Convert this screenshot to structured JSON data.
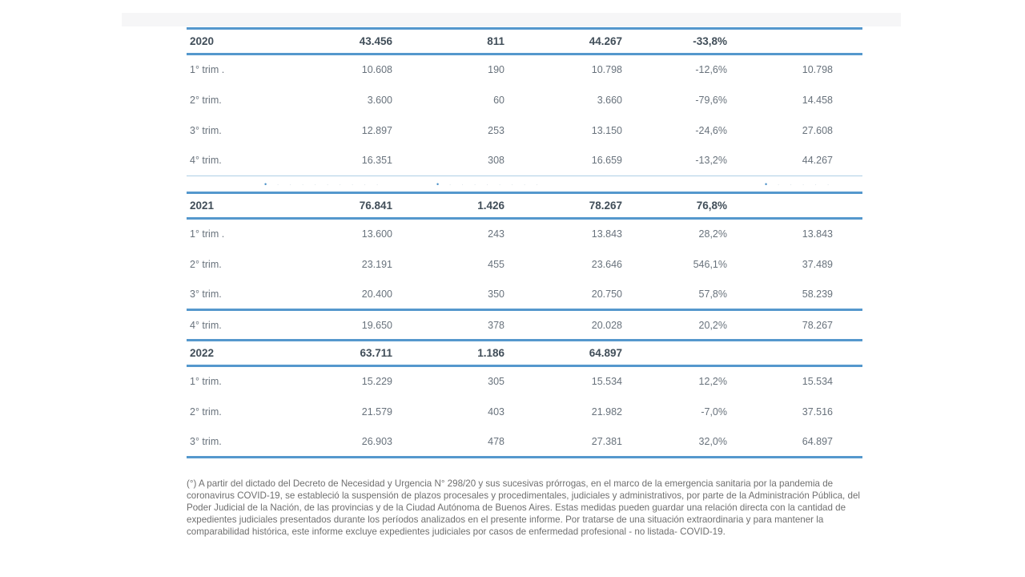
{
  "colors": {
    "table_line_blue": "#5598cd",
    "thin_line_blue": "#aecfe6",
    "year_text": "#414e59",
    "body_text": "#68727c",
    "footnote_text": "#6f6f6f",
    "top_strip": "#f6f6f7"
  },
  "table": {
    "sections": [
      {
        "header": {
          "label": "2020",
          "cells": [
            "43.456",
            "811",
            "44.267",
            "-33,8%",
            ""
          ]
        },
        "rows": [
          {
            "label": "1° trim .",
            "cells": [
              "10.608",
              "190",
              "10.798",
              "-12,6%",
              "10.798"
            ]
          },
          {
            "label": "2° trim.",
            "cells": [
              "3.600",
              "60",
              "3.660",
              "-79,6%",
              "14.458"
            ]
          },
          {
            "label": "3° trim.",
            "cells": [
              "12.897",
              "253",
              "13.150",
              "-24,6%",
              "27.608"
            ]
          },
          {
            "label": "4° trim.",
            "cells": [
              "16.351",
              "308",
              "16.659",
              "-13,2%",
              "44.267"
            ]
          }
        ]
      },
      {
        "header": {
          "label": "2021",
          "cells": [
            "76.841",
            "1.426",
            "78.267",
            "76,8%",
            ""
          ]
        },
        "rows": [
          {
            "label": "1° trim .",
            "cells": [
              "13.600",
              "243",
              "13.843",
              "28,2%",
              "13.843"
            ]
          },
          {
            "label": "2° trim.",
            "cells": [
              "23.191",
              "455",
              "23.646",
              "546,1%",
              "37.489"
            ]
          },
          {
            "label": "3° trim.",
            "cells": [
              "20.400",
              "350",
              "20.750",
              "57,8%",
              "58.239"
            ]
          },
          {
            "label": "4° trim.",
            "cells": [
              "19.650",
              "378",
              "20.028",
              "20,2%",
              "78.267"
            ]
          }
        ]
      },
      {
        "header": {
          "label": "2022",
          "cells": [
            "63.711",
            "1.186",
            "64.897",
            "",
            ""
          ]
        },
        "rows": [
          {
            "label": "1° trim.",
            "cells": [
              "15.229",
              "305",
              "15.534",
              "12,2%",
              "15.534"
            ]
          },
          {
            "label": "2° trim.",
            "cells": [
              "21.579",
              "403",
              "21.982",
              "-7,0%",
              "37.516"
            ]
          },
          {
            "label": "3° trim.",
            "cells": [
              "26.903",
              "478",
              "27.381",
              "32,0%",
              "64.897"
            ]
          }
        ]
      }
    ],
    "ghost_row": {
      "fragments": [
        {
          "dot": "•",
          "dashes": "· · · · · · · · ·"
        },
        {
          "dot": "•",
          "dashes": "· · · · · · · ·"
        },
        {
          "dot": "•",
          "dashes": "· · · · ·"
        }
      ]
    }
  },
  "footnote": "(°) A partir del dictado del Decreto de Necesidad y Urgencia N° 298/20 y sus sucesivas prórrogas, en el marco de la emergencia sanitaria por la pandemia de coronavirus COVID-19, se estableció la suspensión de plazos procesales y procedimentales, judiciales y administrativos, por parte de la Administración Pública, del Poder Judicial de la Nación, de las provincias y de la Ciudad Autónoma de Buenos Aires. Estas medidas pueden guardar una relación directa con la cantidad de expedientes judiciales presentados durante los períodos analizados en el presente informe. Por tratarse de una situación extraordinaria y para mantener la comparabilidad histórica, este informe excluye expedientes judiciales por casos de enfermedad profesional - no listada- COVID-19."
}
